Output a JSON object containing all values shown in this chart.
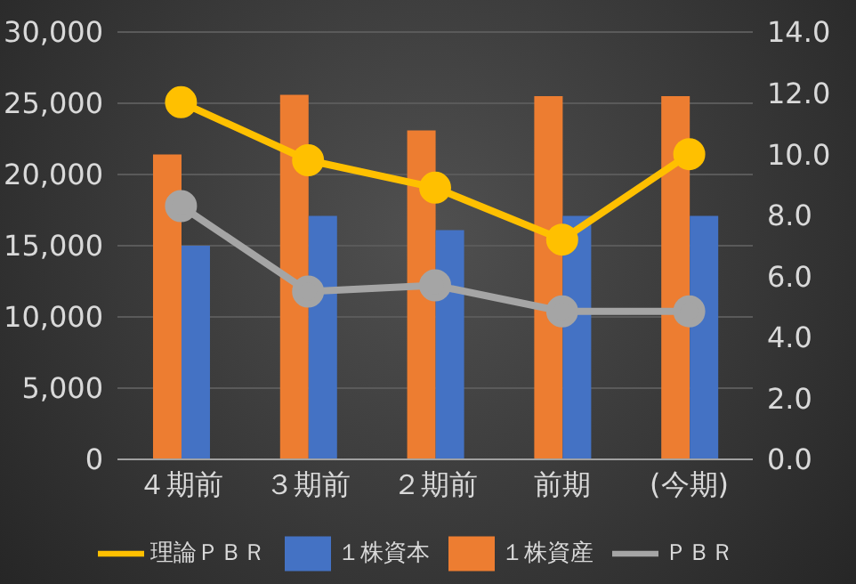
{
  "chart_data": {
    "type": "bar",
    "categories": [
      "４期前",
      "３期前",
      "２期前",
      "前期",
      "(今期)"
    ],
    "series": [
      {
        "name": "１株資産",
        "color": "#ed7d31",
        "values": [
          21400,
          25600,
          23100,
          25500,
          25500
        ]
      },
      {
        "name": "１株資本",
        "color": "#4472c4",
        "values": [
          15000,
          17100,
          16100,
          17100,
          17100
        ]
      },
      {
        "name": "ＰＢＲ",
        "type": "line",
        "axis": "y2",
        "color": "#a5a5a5",
        "values": [
          8.3,
          5.5,
          5.7,
          4.85,
          4.85
        ]
      },
      {
        "name": "理論ＰＢＲ",
        "type": "line",
        "axis": "y2",
        "color": "#ffc000",
        "values": [
          11.7,
          9.8,
          8.9,
          7.2,
          10.0
        ]
      }
    ],
    "ylim": [
      0,
      30000
    ],
    "yticks": [
      {
        "value": 0,
        "label": "0"
      },
      {
        "value": 5000,
        "label": "5,000"
      },
      {
        "value": 10000,
        "label": "10,000"
      },
      {
        "value": 15000,
        "label": "15,000"
      },
      {
        "value": 20000,
        "label": "20,000"
      },
      {
        "value": 25000,
        "label": "25,000"
      },
      {
        "value": 30000,
        "label": "30,000"
      }
    ],
    "y2lim": [
      0,
      14
    ],
    "y2ticks": [
      {
        "value": 0,
        "label": "0.0"
      },
      {
        "value": 2,
        "label": "2.0"
      },
      {
        "value": 4,
        "label": "4.0"
      },
      {
        "value": 6,
        "label": "6.0"
      },
      {
        "value": 8,
        "label": "8.0"
      },
      {
        "value": 10,
        "label": "10.0"
      },
      {
        "value": 12,
        "label": "12.0"
      },
      {
        "value": 14,
        "label": "14.0"
      }
    ],
    "grid": "y",
    "legend": "bottom",
    "marker": "circle"
  }
}
